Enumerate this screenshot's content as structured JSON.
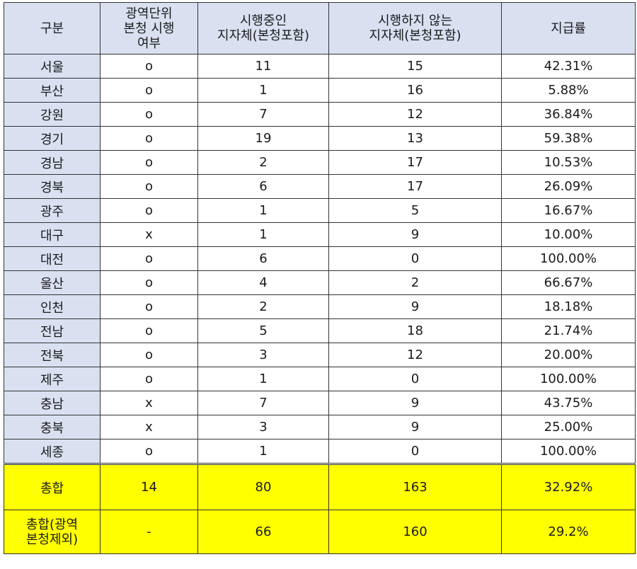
{
  "headers": [
    [
      "구분"
    ],
    [
      "광역단위",
      "본청 시행",
      "여부"
    ],
    [
      "시행중인",
      "지자체(본청포함)"
    ],
    [
      "시행하지 않는",
      "지자체(본청포함)"
    ],
    [
      "지급률"
    ]
  ],
  "rows": [
    [
      "서울",
      "o",
      "11",
      "15",
      "42.31%"
    ],
    [
      "부산",
      "o",
      "1",
      "16",
      "5.88%"
    ],
    [
      "강원",
      "o",
      "7",
      "12",
      "36.84%"
    ],
    [
      "경기",
      "o",
      "19",
      "13",
      "59.38%"
    ],
    [
      "경남",
      "o",
      "2",
      "17",
      "10.53%"
    ],
    [
      "경북",
      "o",
      "6",
      "17",
      "26.09%"
    ],
    [
      "광주",
      "o",
      "1",
      "5",
      "16.67%"
    ],
    [
      "대구",
      "x",
      "1",
      "9",
      "10.00%"
    ],
    [
      "대전",
      "o",
      "6",
      "0",
      "100.00%"
    ],
    [
      "울산",
      "o",
      "4",
      "2",
      "66.67%"
    ],
    [
      "인천",
      "o",
      "2",
      "9",
      "18.18%"
    ],
    [
      "전남",
      "o",
      "5",
      "18",
      "21.74%"
    ],
    [
      "전북",
      "o",
      "3",
      "12",
      "20.00%"
    ],
    [
      "제주",
      "o",
      "1",
      "0",
      "100.00%"
    ],
    [
      "충남",
      "x",
      "7",
      "9",
      "43.75%"
    ],
    [
      "충북",
      "x",
      "3",
      "9",
      "25.00%"
    ],
    [
      "세종",
      "o",
      "1",
      "0",
      "100.00%"
    ]
  ],
  "totals": [
    {
      "name_lines": [
        "총합"
      ],
      "cells": [
        "14",
        "80",
        "163",
        "32.92%"
      ]
    },
    {
      "name_lines": [
        "총합(광역",
        "본청제외)"
      ],
      "cells": [
        "-",
        "66",
        "160",
        "29.2%"
      ]
    }
  ]
}
